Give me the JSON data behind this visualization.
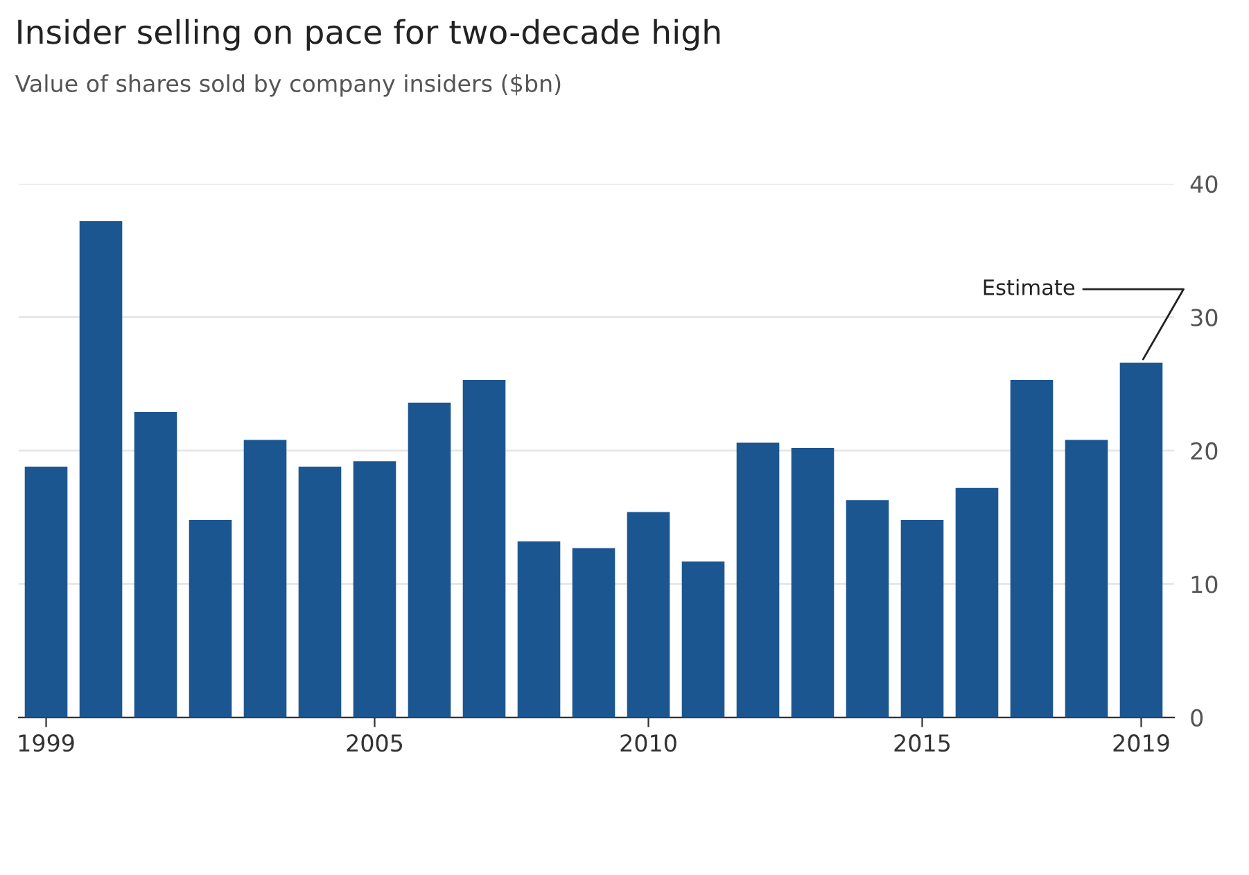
{
  "chart_data": {
    "type": "bar",
    "title": "Insider selling on pace for two-decade high",
    "subtitle": "Value of shares sold by company insiders ($bn)",
    "x": [
      1999,
      2000,
      2001,
      2002,
      2003,
      2004,
      2005,
      2006,
      2007,
      2008,
      2009,
      2010,
      2011,
      2012,
      2013,
      2014,
      2015,
      2016,
      2017,
      2018,
      2019
    ],
    "values": [
      18.8,
      37.2,
      22.9,
      14.8,
      20.8,
      18.8,
      19.2,
      23.6,
      25.3,
      13.2,
      12.7,
      15.4,
      11.7,
      20.6,
      20.2,
      16.3,
      14.8,
      17.2,
      25.3,
      20.8,
      26.6
    ],
    "color": "#1c5691",
    "xlim": [
      1998.5,
      2019.6
    ],
    "xticks": [
      1999,
      2005,
      2010,
      2015,
      2019
    ],
    "ylim": [
      0,
      40
    ],
    "yticks": [
      0,
      10,
      20,
      30,
      40
    ],
    "grid": "y",
    "annotations": [
      {
        "text": "Estimate",
        "x": 2019,
        "y": 26.6
      }
    ]
  }
}
